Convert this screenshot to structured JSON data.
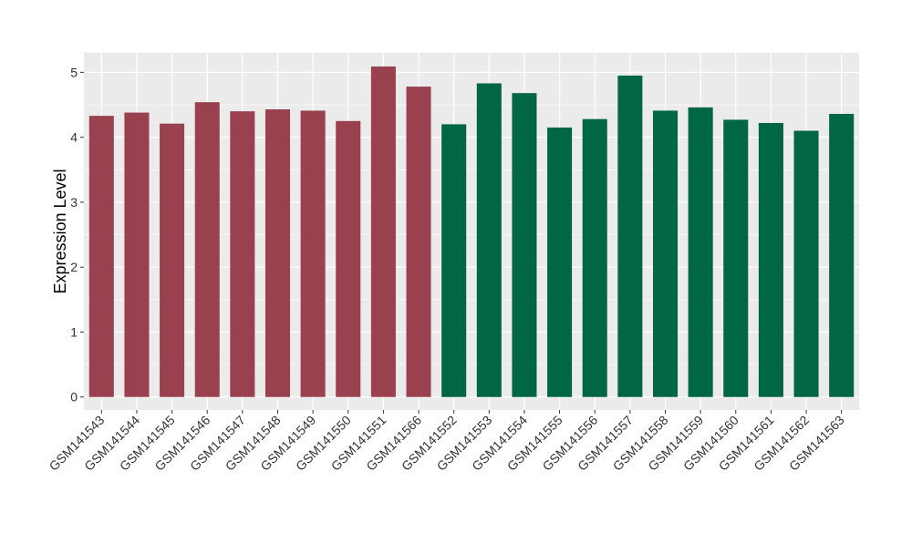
{
  "chart_data": {
    "type": "bar",
    "title": "",
    "xlabel": "",
    "ylabel": "Expression Level",
    "ylim": [
      -0.2,
      5.3
    ],
    "yticks": [
      0,
      1,
      2,
      3,
      4,
      5
    ],
    "grid": true,
    "legend": "none",
    "categories": [
      "GSM141543",
      "GSM141544",
      "GSM141545",
      "GSM141546",
      "GSM141547",
      "GSM141548",
      "GSM141549",
      "GSM141550",
      "GSM141551",
      "GSM141566",
      "GSM141552",
      "GSM141553",
      "GSM141554",
      "GSM141555",
      "GSM141556",
      "GSM141557",
      "GSM141558",
      "GSM141559",
      "GSM141560",
      "GSM141561",
      "GSM141562",
      "GSM141563"
    ],
    "values": [
      4.33,
      4.38,
      4.21,
      4.54,
      4.4,
      4.43,
      4.41,
      4.25,
      5.09,
      4.78,
      4.2,
      4.83,
      4.68,
      4.15,
      4.28,
      4.95,
      4.41,
      4.46,
      4.27,
      4.22,
      4.1,
      4.36
    ],
    "group_colors": [
      "#9a4150",
      "#9a4150",
      "#9a4150",
      "#9a4150",
      "#9a4150",
      "#9a4150",
      "#9a4150",
      "#9a4150",
      "#9a4150",
      "#9a4150",
      "#006644",
      "#006644",
      "#006644",
      "#006644",
      "#006644",
      "#006644",
      "#006644",
      "#006644",
      "#006644",
      "#006644",
      "#006644",
      "#006644"
    ],
    "panel_background": "#ebebeb",
    "gridline_color": "#ffffff"
  }
}
